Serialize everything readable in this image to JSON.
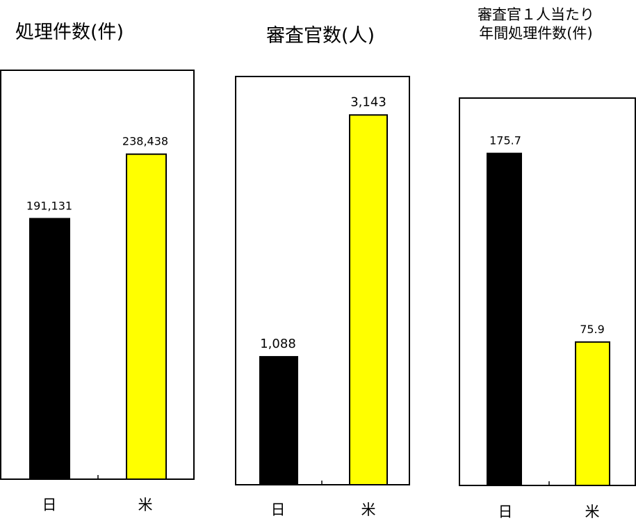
{
  "chart_data": [
    {
      "type": "bar",
      "title": "処理件数(件)",
      "categories": [
        "日",
        "米"
      ],
      "values": [
        191131,
        238438
      ],
      "value_labels": [
        "191,131",
        "238,438"
      ],
      "colors": [
        "#000000",
        "#ffff00"
      ],
      "ylim": [
        0,
        300000
      ],
      "grid": false,
      "legend": "none"
    },
    {
      "type": "bar",
      "title": "審査官数(人)",
      "categories": [
        "日",
        "米"
      ],
      "values": [
        1088,
        3143
      ],
      "value_labels": [
        "1,088",
        "3,143"
      ],
      "colors": [
        "#000000",
        "#ffff00"
      ],
      "ylim": [
        0,
        3470
      ],
      "grid": false,
      "legend": "none"
    },
    {
      "type": "bar",
      "title": "審査官１人当たり",
      "title_line2": "年間処理件数(件)",
      "categories": [
        "日",
        "米"
      ],
      "values": [
        175.7,
        75.9
      ],
      "value_labels": [
        "175.7",
        "75.9"
      ],
      "colors": [
        "#000000",
        "#ffff00"
      ],
      "ylim": [
        0,
        205
      ],
      "grid": false,
      "legend": "none"
    }
  ]
}
